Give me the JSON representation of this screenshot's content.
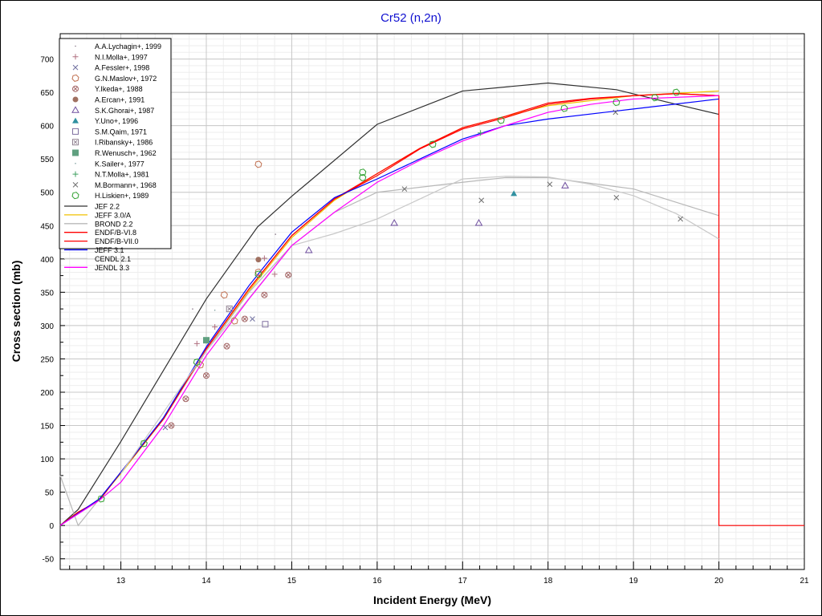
{
  "chart_data": {
    "type": "scatter",
    "title": "Cr52 (n,2n)",
    "xlabel": "Incident Energy (MeV)",
    "ylabel": "Cross section (mb)",
    "xlim": [
      12.29,
      21
    ],
    "ylim": [
      -66,
      738
    ],
    "xticks": [
      13,
      14,
      15,
      16,
      17,
      18,
      19,
      20,
      21
    ],
    "yticks": [
      -50,
      0,
      50,
      100,
      150,
      200,
      250,
      300,
      350,
      400,
      450,
      500,
      550,
      600,
      650,
      700
    ],
    "grid": true,
    "legend_position": "top-left",
    "experimental": [
      {
        "name": "A.A.Lychagin+, 1999",
        "marker": "dot",
        "color": "#8a7a8a",
        "points": [
          [
            13.84,
            325
          ],
          [
            14.81,
            437
          ]
        ]
      },
      {
        "name": "N.I.Molla+, 1997",
        "marker": "plus",
        "color": "#b07080",
        "points": [
          [
            13.89,
            273
          ],
          [
            14.1,
            298
          ],
          [
            14.68,
            401
          ],
          [
            14.8,
            377
          ]
        ]
      },
      {
        "name": "A.Fessler+, 1998",
        "marker": "x",
        "color": "#7070a0",
        "points": [
          [
            13.52,
            147
          ],
          [
            14.54,
            310
          ]
        ]
      },
      {
        "name": "G.N.Maslov+, 1972",
        "marker": "hex",
        "color": "#c07050",
        "points": [
          [
            13.93,
            241
          ],
          [
            14.21,
            346
          ],
          [
            14.33,
            307
          ],
          [
            14.61,
            542
          ],
          [
            14.61,
            380
          ]
        ]
      },
      {
        "name": "Y.Ikeda+, 1988",
        "marker": "circx",
        "color": "#a06060",
        "points": [
          [
            13.59,
            150
          ],
          [
            13.76,
            190
          ],
          [
            14.0,
            225
          ],
          [
            14.24,
            269
          ],
          [
            14.45,
            310
          ],
          [
            14.68,
            346
          ],
          [
            14.96,
            376
          ]
        ]
      },
      {
        "name": "A.Ercan+, 1991",
        "marker": "filledcirc",
        "color": "#a07060",
        "points": [
          [
            14.61,
            399
          ]
        ]
      },
      {
        "name": "S.K.Ghorai+, 1987",
        "marker": "tri",
        "color": "#7050a0",
        "points": [
          [
            15.2,
            413
          ],
          [
            16.2,
            454
          ],
          [
            17.19,
            454
          ],
          [
            18.2,
            510
          ]
        ]
      },
      {
        "name": "Y.Uno+, 1996",
        "marker": "filledtri",
        "color": "#3090a0",
        "points": [
          [
            17.6,
            498
          ]
        ]
      },
      {
        "name": "S.M.Qaim, 1971",
        "marker": "square",
        "color": "#8070a0",
        "points": [
          [
            14.69,
            302
          ]
        ]
      },
      {
        "name": "I.Ribansky+, 1986",
        "marker": "squarex",
        "color": "#908090",
        "points": [
          [
            14.27,
            325
          ]
        ]
      },
      {
        "name": "R.Wenusch+, 1962",
        "marker": "filledsquare",
        "color": "#60a080",
        "points": [
          [
            14.0,
            278
          ]
        ]
      },
      {
        "name": "K.Sailer+, 1977",
        "marker": "dot",
        "color": "#80a0a0",
        "points": [
          [
            14.1,
            323
          ]
        ]
      },
      {
        "name": "N.T.Molla+, 1981",
        "marker": "plus",
        "color": "#40a060",
        "points": [
          [
            17.21,
            589
          ]
        ]
      },
      {
        "name": "M.Bormann+, 1968",
        "marker": "x",
        "color": "#707070",
        "points": [
          [
            16.32,
            505
          ],
          [
            17.22,
            488
          ],
          [
            18.02,
            512
          ],
          [
            18.8,
            492
          ],
          [
            19.55,
            460
          ],
          [
            18.79,
            620
          ]
        ]
      },
      {
        "name": "H.Liskien+, 1989",
        "marker": "hex",
        "color": "#30a030",
        "points": [
          [
            12.77,
            40
          ],
          [
            13.27,
            123
          ],
          [
            13.89,
            245
          ],
          [
            14.61,
            377
          ],
          [
            15.83,
            530
          ],
          [
            15.83,
            522
          ],
          [
            16.65,
            572
          ],
          [
            17.45,
            608
          ],
          [
            18.19,
            626
          ],
          [
            18.8,
            635
          ],
          [
            19.25,
            642
          ],
          [
            19.5,
            650
          ]
        ]
      }
    ],
    "evaluations": [
      {
        "name": "JEF 2.2",
        "color": "#303030",
        "points": [
          [
            12.29,
            0
          ],
          [
            12.5,
            24
          ],
          [
            13,
            126
          ],
          [
            14,
            340
          ],
          [
            14.6,
            448
          ],
          [
            15,
            494
          ],
          [
            16,
            602
          ],
          [
            17,
            652
          ],
          [
            18,
            664
          ],
          [
            18.8,
            654
          ],
          [
            19.5,
            632
          ],
          [
            20,
            617
          ]
        ]
      },
      {
        "name": "JEFF 3.0/A",
        "color": "#f0c000",
        "points": [
          [
            12.29,
            0
          ],
          [
            12.75,
            40
          ],
          [
            13,
            78
          ],
          [
            13.5,
            160
          ],
          [
            14,
            262
          ],
          [
            14.5,
            352
          ],
          [
            15,
            432
          ],
          [
            15.5,
            488
          ],
          [
            16,
            528
          ],
          [
            16.5,
            566
          ],
          [
            17,
            597
          ],
          [
            17.5,
            614
          ],
          [
            18,
            630
          ],
          [
            19,
            645
          ],
          [
            20,
            652
          ]
        ]
      },
      {
        "name": "BROND 2.2",
        "color": "#b8b8b8",
        "points": [
          [
            12.29,
            75
          ],
          [
            12.5,
            0
          ],
          [
            13,
            80
          ],
          [
            13.5,
            160
          ],
          [
            14,
            262
          ],
          [
            14.5,
            350
          ],
          [
            15,
            420
          ],
          [
            15.5,
            470
          ],
          [
            16,
            500
          ],
          [
            17,
            515
          ],
          [
            17.5,
            522
          ],
          [
            18,
            522
          ],
          [
            19,
            505
          ],
          [
            20,
            465
          ]
        ]
      },
      {
        "name": "ENDF/B-VI.8",
        "color": "#ff0000",
        "points": [
          [
            12.29,
            0
          ],
          [
            12.5,
            20
          ],
          [
            12.75,
            38
          ],
          [
            13,
            80
          ],
          [
            13.5,
            160
          ],
          [
            14,
            265
          ],
          [
            14.5,
            355
          ],
          [
            15,
            435
          ],
          [
            15.5,
            490
          ],
          [
            16,
            528
          ],
          [
            16.5,
            566
          ],
          [
            17,
            597
          ],
          [
            17.5,
            614
          ],
          [
            18,
            634
          ],
          [
            18.5,
            641
          ],
          [
            19,
            645
          ],
          [
            19.5,
            648
          ],
          [
            20,
            645
          ]
        ]
      },
      {
        "name": "ENDF/B-VII.0",
        "color": "#ff0000",
        "points": [
          [
            12.29,
            0
          ],
          [
            12.5,
            20
          ],
          [
            12.75,
            38
          ],
          [
            13,
            80
          ],
          [
            13.5,
            160
          ],
          [
            14,
            265
          ],
          [
            14.5,
            355
          ],
          [
            15,
            435
          ],
          [
            15.5,
            490
          ],
          [
            16,
            525
          ],
          [
            16.5,
            565
          ],
          [
            17,
            595
          ],
          [
            17.5,
            612
          ],
          [
            18,
            632
          ],
          [
            18.5,
            640
          ],
          [
            19,
            645
          ],
          [
            19.5,
            648
          ],
          [
            20,
            645
          ],
          [
            20,
            0
          ],
          [
            21,
            0
          ]
        ]
      },
      {
        "name": "JEFF 3.1",
        "color": "#0000ff",
        "points": [
          [
            12.29,
            0
          ],
          [
            12.75,
            40
          ],
          [
            13,
            80
          ],
          [
            13.5,
            162
          ],
          [
            14,
            268
          ],
          [
            14.5,
            360
          ],
          [
            15,
            440
          ],
          [
            15.5,
            492
          ],
          [
            16,
            520
          ],
          [
            16.5,
            550
          ],
          [
            17,
            580
          ],
          [
            17.5,
            600
          ],
          [
            18,
            610
          ],
          [
            19,
            625
          ],
          [
            20,
            640
          ]
        ]
      },
      {
        "name": "CENDL 2.1",
        "color": "#c8c8c8",
        "points": [
          [
            13,
            78
          ],
          [
            14,
            262
          ],
          [
            15,
            420
          ],
          [
            15.5,
            438
          ],
          [
            16,
            460
          ],
          [
            16.5,
            490
          ],
          [
            17,
            520
          ],
          [
            17.5,
            524
          ],
          [
            18,
            523
          ],
          [
            18.5,
            512
          ],
          [
            19,
            495
          ],
          [
            19.5,
            468
          ],
          [
            20,
            430
          ]
        ]
      },
      {
        "name": "JENDL 3.3",
        "color": "#ff00ff",
        "points": [
          [
            12.29,
            0
          ],
          [
            12.75,
            38
          ],
          [
            13,
            65
          ],
          [
            13.5,
            150
          ],
          [
            14,
            255
          ],
          [
            14.5,
            340
          ],
          [
            15,
            420
          ],
          [
            15.5,
            470
          ],
          [
            16,
            515
          ],
          [
            16.5,
            548
          ],
          [
            17,
            577
          ],
          [
            17.5,
            600
          ],
          [
            18,
            620
          ],
          [
            18.5,
            632
          ],
          [
            19,
            640
          ],
          [
            20,
            645
          ]
        ]
      }
    ]
  }
}
